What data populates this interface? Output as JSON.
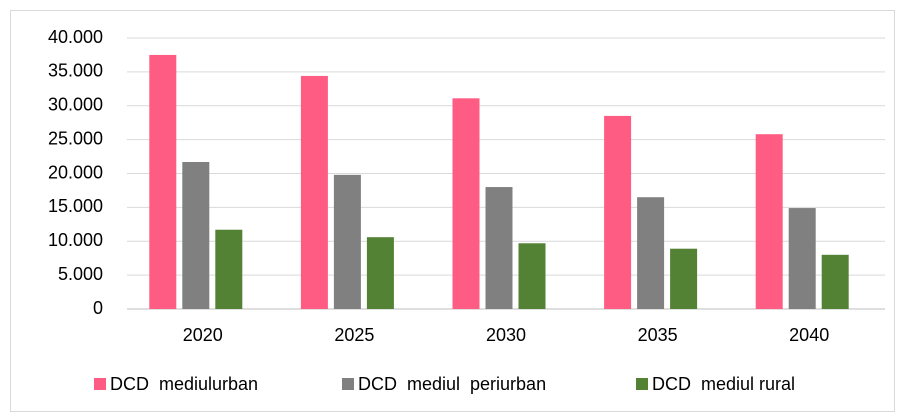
{
  "chart_data": {
    "type": "bar",
    "categories": [
      "2020",
      "2025",
      "2030",
      "2035",
      "2040"
    ],
    "series": [
      {
        "name": "DCD  mediulurban",
        "color": "#ff5c84",
        "values": [
          37500,
          34400,
          31100,
          28500,
          25800
        ]
      },
      {
        "name": "DCD  mediul  periurban",
        "color": "#808080",
        "values": [
          21700,
          19800,
          18000,
          16500,
          14900
        ]
      },
      {
        "name": "DCD  mediul rural",
        "color": "#548235",
        "values": [
          11700,
          10600,
          9700,
          8900,
          8000
        ]
      }
    ],
    "ylim": [
      0,
      40000
    ],
    "yticks": [
      0,
      {
        "value": 5000,
        "label": "5.000"
      },
      {
        "value": 10000,
        "label": "10.000"
      },
      {
        "value": 15000,
        "label": "15.000"
      },
      {
        "value": 20000,
        "label": "20.000"
      },
      {
        "value": 25000,
        "label": "25.000"
      },
      {
        "value": 30000,
        "label": "30.000"
      },
      {
        "value": 35000,
        "label": "35.000"
      },
      {
        "value": 40000,
        "label": "40.000"
      }
    ],
    "grid": true,
    "legend": "bottom"
  }
}
